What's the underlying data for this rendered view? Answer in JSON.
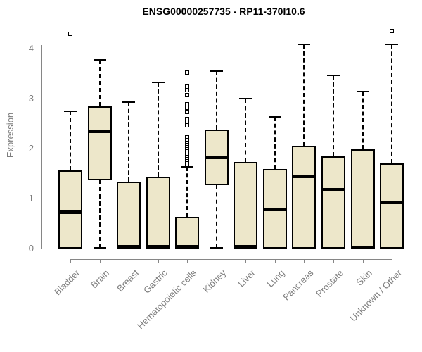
{
  "header": {
    "title": "ENSG00000257735 - RP11-370I10.6"
  },
  "chart_data": {
    "type": "boxplot",
    "title": "ENSG00000257735 - RP11-370I10.6",
    "xlabel": "",
    "ylabel": "Expression",
    "ylim": [
      0,
      4.4
    ],
    "yticks": [
      "0",
      "1",
      "2",
      "3",
      "4"
    ],
    "grid": false,
    "legend": false,
    "categories": [
      "Bladder",
      "Brain",
      "Breast",
      "Gastric",
      "Hematopoietic cells",
      "Kidney",
      "Liver",
      "Lung",
      "Pancreas",
      "Prostate",
      "Skin",
      "Unknown / Other"
    ],
    "boxes": [
      {
        "label": "Bladder",
        "whisker_low": 0,
        "q1": 0,
        "median": 0.72,
        "q3": 1.56,
        "whisker_high": 2.74,
        "outliers": [
          4.3
        ]
      },
      {
        "label": "Brain",
        "whisker_low": 0.02,
        "q1": 1.36,
        "median": 2.35,
        "q3": 2.85,
        "whisker_high": 3.78,
        "outliers": []
      },
      {
        "label": "Breast",
        "whisker_low": 0,
        "q1": 0,
        "median": 0.03,
        "q3": 1.34,
        "whisker_high": 2.93,
        "outliers": []
      },
      {
        "label": "Gastric",
        "whisker_low": 0,
        "q1": 0,
        "median": 0.03,
        "q3": 1.44,
        "whisker_high": 3.32,
        "outliers": []
      },
      {
        "label": "Hematopoietic cells",
        "whisker_low": 0,
        "q1": 0,
        "median": 0.03,
        "q3": 0.64,
        "whisker_high": 1.63,
        "outliers": [
          3.52,
          3.24,
          3.17,
          3.07,
          2.89,
          2.82,
          2.73,
          2.59,
          2.54,
          2.46,
          2.23,
          2.17,
          2.11,
          2.07,
          2.03,
          1.99,
          1.95,
          1.91,
          1.87,
          1.83,
          1.79,
          1.75,
          1.71,
          1.67
        ]
      },
      {
        "label": "Kidney",
        "whisker_low": 0.02,
        "q1": 1.27,
        "median": 1.83,
        "q3": 2.38,
        "whisker_high": 3.55,
        "outliers": []
      },
      {
        "label": "Liver",
        "whisker_low": 0,
        "q1": 0,
        "median": 0.03,
        "q3": 1.73,
        "whisker_high": 3.0,
        "outliers": []
      },
      {
        "label": "Lung",
        "whisker_low": 0,
        "q1": 0,
        "median": 0.78,
        "q3": 1.59,
        "whisker_high": 2.63,
        "outliers": []
      },
      {
        "label": "Pancreas",
        "whisker_low": 0,
        "q1": 0,
        "median": 1.45,
        "q3": 2.06,
        "whisker_high": 4.08,
        "outliers": []
      },
      {
        "label": "Prostate",
        "whisker_low": 0,
        "q1": 0,
        "median": 1.18,
        "q3": 1.84,
        "whisker_high": 3.46,
        "outliers": []
      },
      {
        "label": "Skin",
        "whisker_low": 0,
        "q1": 0,
        "median": 0.02,
        "q3": 1.98,
        "whisker_high": 3.14,
        "outliers": []
      },
      {
        "label": "Unknown / Other",
        "whisker_low": 0,
        "q1": 0,
        "median": 0.92,
        "q3": 1.71,
        "whisker_high": 4.08,
        "outliers": [
          4.35
        ]
      }
    ],
    "colors": {
      "box_fill": "#EDE7CA",
      "box_border": "#000000",
      "median": "#000000",
      "whisker": "#000000",
      "axis": "#868686",
      "tick_label": "#7d7d7d",
      "title": "#000000",
      "background": "#ffffff"
    }
  }
}
